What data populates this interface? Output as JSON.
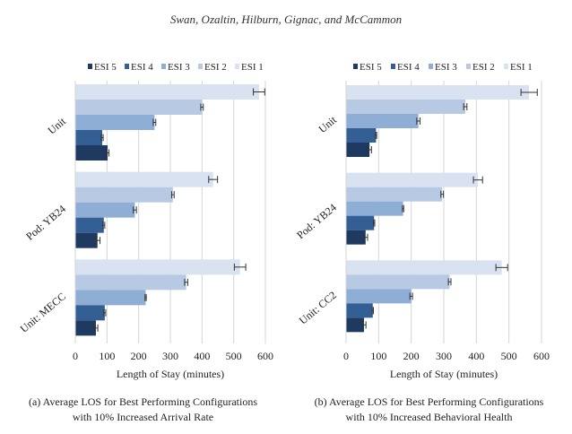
{
  "header": {
    "authors": "Swan, Ozaltin, Hilburn, Gignac, and McCammon"
  },
  "colors": {
    "ESI 5": "#1f3a60",
    "ESI 4": "#345f94",
    "ESI 3": "#8faed6",
    "ESI 2": "#b7c9e3",
    "ESI 1": "#d9e2f0",
    "grid": "#d4d4d4",
    "errorbar": "#333333"
  },
  "chart_data": [
    {
      "type": "bar",
      "orientation": "horizontal",
      "title": "(a) Average LOS for Best Performing Configurations with 10% Increased Arrival Rate",
      "caption_line1": "(a) Average LOS for Best Performing Configurations",
      "caption_line2": "with 10% Increased Arrival Rate",
      "xlabel": "Length of Stay (minutes)",
      "ylabel": "",
      "xlim": [
        0,
        600
      ],
      "xticks": [
        0,
        100,
        200,
        300,
        400,
        500,
        600
      ],
      "grid": true,
      "legend_position": "top",
      "legend": [
        "ESI 5",
        "ESI 4",
        "ESI 3",
        "ESI 2",
        "ESI 1"
      ],
      "categories": [
        "Unit",
        "Pod: YB24",
        "Unit: MECC"
      ],
      "series": [
        {
          "name": "ESI 1",
          "values": [
            580,
            435,
            520
          ],
          "errors": [
            18,
            14,
            18
          ]
        },
        {
          "name": "ESI 2",
          "values": [
            400,
            308,
            350
          ],
          "errors": [
            4,
            4,
            5
          ]
        },
        {
          "name": "ESI 3",
          "values": [
            250,
            188,
            222
          ],
          "errors": [
            4,
            5,
            2
          ]
        },
        {
          "name": "ESI 4",
          "values": [
            85,
            90,
            93
          ],
          "errors": [
            3,
            3,
            3
          ]
        },
        {
          "name": "ESI 5",
          "values": [
            102,
            70,
            65
          ],
          "errors": [
            4,
            8,
            6
          ]
        }
      ]
    },
    {
      "type": "bar",
      "orientation": "horizontal",
      "title": "(b) Average LOS for Best Performing Configurations with 10% Increased Behavioral Health",
      "caption_line1": "(b) Average LOS for Best Performing Configurations",
      "caption_line2": "with 10% Increased Behavioral Health",
      "xlabel": "Length of Stay (minutes)",
      "ylabel": "",
      "xlim": [
        0,
        600
      ],
      "xticks": [
        0,
        100,
        200,
        300,
        400,
        500,
        600
      ],
      "grid": true,
      "legend_position": "top",
      "legend": [
        "ESI 5",
        "ESI 4",
        "ESI 3",
        "ESI 2",
        "ESI 1"
      ],
      "categories": [
        "Unit",
        "Pod: YB24",
        "Unit: CC2"
      ],
      "series": [
        {
          "name": "ESI 1",
          "values": [
            562,
            405,
            478
          ],
          "errors": [
            25,
            14,
            18
          ]
        },
        {
          "name": "ESI 2",
          "values": [
            366,
            295,
            318
          ],
          "errors": [
            5,
            4,
            4
          ]
        },
        {
          "name": "ESI 3",
          "values": [
            222,
            175,
            200
          ],
          "errors": [
            5,
            2,
            4
          ]
        },
        {
          "name": "ESI 4",
          "values": [
            92,
            86,
            82
          ],
          "errors": [
            2,
            2,
            2
          ]
        },
        {
          "name": "ESI 5",
          "values": [
            72,
            60,
            55
          ],
          "errors": [
            6,
            6,
            6
          ]
        }
      ]
    }
  ]
}
